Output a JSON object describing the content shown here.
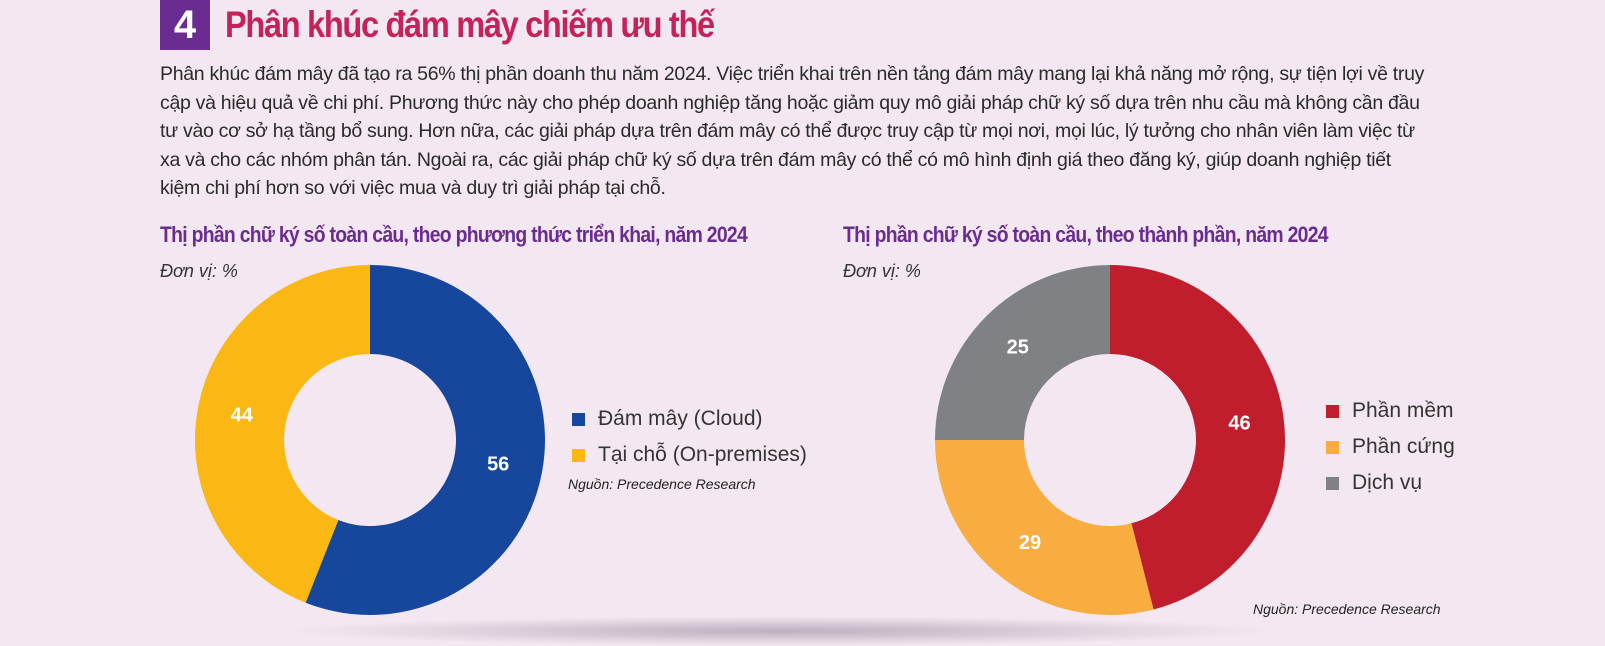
{
  "section_number": "4",
  "heading": "Phân khúc đám mây chiếm ưu thế",
  "intro_text": "Phân khúc đám mây đã tạo ra 56% thị phần doanh thu năm 2024. Việc triển khai trên nền tảng đám mây mang lại khả năng mở rộng, sự tiện lợi về truy cập và hiệu quả về chi phí. Phương thức này cho phép doanh nghiệp tăng hoặc giảm quy mô giải pháp chữ ký số dựa trên nhu cầu mà không cần đầu tư vào cơ sở hạ tầng bổ sung. Hơn nữa, các giải pháp dựa trên đám mây có thể được truy cập từ mọi nơi, mọi lúc, lý tưởng cho nhân viên làm việc từ xa và cho các nhóm phân tán. Ngoài ra, các giải pháp chữ ký số dựa trên đám mây có thể có mô hình định giá theo đăng ký, giúp doanh nghiệp tiết kiệm chi phí hơn so với việc mua và duy trì giải pháp tại chỗ.",
  "colors": {
    "badge": "#6a2c91",
    "heading": "#c5225a",
    "chart_title": "#6a2c91",
    "background": "#f3e8f1"
  },
  "chart_data": [
    {
      "type": "pie",
      "title": "Thị phần chữ ký số toàn cầu, theo phương thức triển khai, năm 2024",
      "unit": "Đơn vị: %",
      "donut": true,
      "legend_position": "right",
      "source": "Nguồn: Precedence Research",
      "slices": [
        {
          "label": "Đám mây (Cloud)",
          "value": 56,
          "color": "#17479d"
        },
        {
          "label": "Tại chỗ (On-premises)",
          "value": 44,
          "color": "#fbb714"
        }
      ]
    },
    {
      "type": "pie",
      "title": "Thị phần chữ ký số toàn cầu, theo thành phần, năm 2024",
      "unit": "Đơn vị: %",
      "donut": true,
      "legend_position": "right",
      "source": "Nguồn: Precedence Research",
      "slices": [
        {
          "label": "Phần mềm",
          "value": 46,
          "color": "#c01d2d"
        },
        {
          "label": "Phần cứng",
          "value": 29,
          "color": "#f9ad40"
        },
        {
          "label": "Dịch vụ",
          "value": 25,
          "color": "#808184"
        }
      ]
    }
  ]
}
